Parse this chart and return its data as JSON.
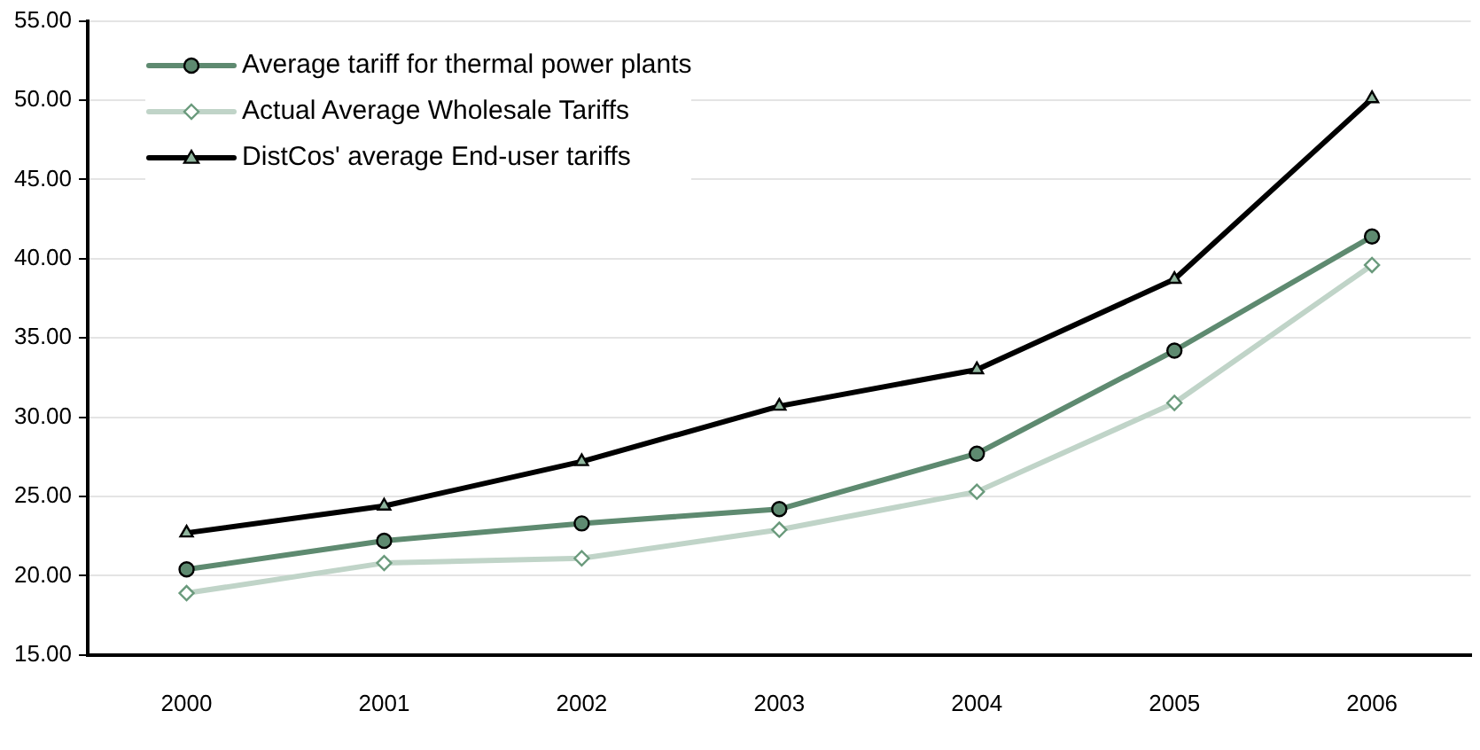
{
  "chart_data": {
    "type": "line",
    "categories": [
      "2000",
      "2001",
      "2002",
      "2003",
      "2004",
      "2005",
      "2006"
    ],
    "series": [
      {
        "name": "Average tariff for thermal power plants",
        "color": "#5e8a70",
        "marker": "circle",
        "values": [
          20.4,
          22.2,
          23.3,
          24.2,
          27.7,
          34.2,
          41.4
        ]
      },
      {
        "name": "Actual Average Wholesale Tariffs",
        "color": "#c0d4c8",
        "marker": "diamond",
        "values": [
          18.9,
          20.8,
          21.1,
          22.9,
          25.3,
          30.9,
          39.6
        ]
      },
      {
        "name": "DistCos' average End-user tariffs",
        "color": "#000000",
        "marker": "triangle",
        "values": [
          22.7,
          24.4,
          27.2,
          30.7,
          33.0,
          38.7,
          50.1
        ]
      }
    ],
    "ylim": [
      15,
      55
    ],
    "yticks": [
      {
        "value": 15,
        "label": "15.00"
      },
      {
        "value": 20,
        "label": "20.00"
      },
      {
        "value": 25,
        "label": "25.00"
      },
      {
        "value": 30,
        "label": "30.00"
      },
      {
        "value": 35,
        "label": "35.00"
      },
      {
        "value": 40,
        "label": "40.00"
      },
      {
        "value": 45,
        "label": "45.00"
      },
      {
        "value": 50,
        "label": "50.00"
      },
      {
        "value": 55,
        "label": "55.00"
      }
    ],
    "grid": "y",
    "legend": "top left"
  }
}
